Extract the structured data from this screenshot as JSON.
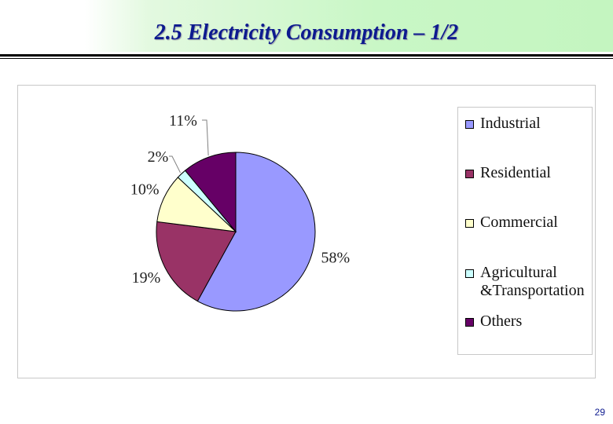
{
  "slide": {
    "title": "2.5 Electricity Consumption – 1/2",
    "page_number": "29"
  },
  "chart_data": {
    "type": "pie",
    "categories": [
      "Industrial",
      "Residential",
      "Commercial",
      "Agricultural\n&Transportation",
      "Others"
    ],
    "values": [
      58,
      19,
      10,
      2,
      11
    ],
    "data_labels": [
      "58%",
      "19%",
      "10%",
      "2%",
      "11%"
    ],
    "colors": [
      "#9999ff",
      "#993366",
      "#ffffcc",
      "#ccffff",
      "#660066"
    ],
    "start_angle_deg": 0,
    "direction": "clockwise",
    "legend_position": "right",
    "title": ""
  }
}
